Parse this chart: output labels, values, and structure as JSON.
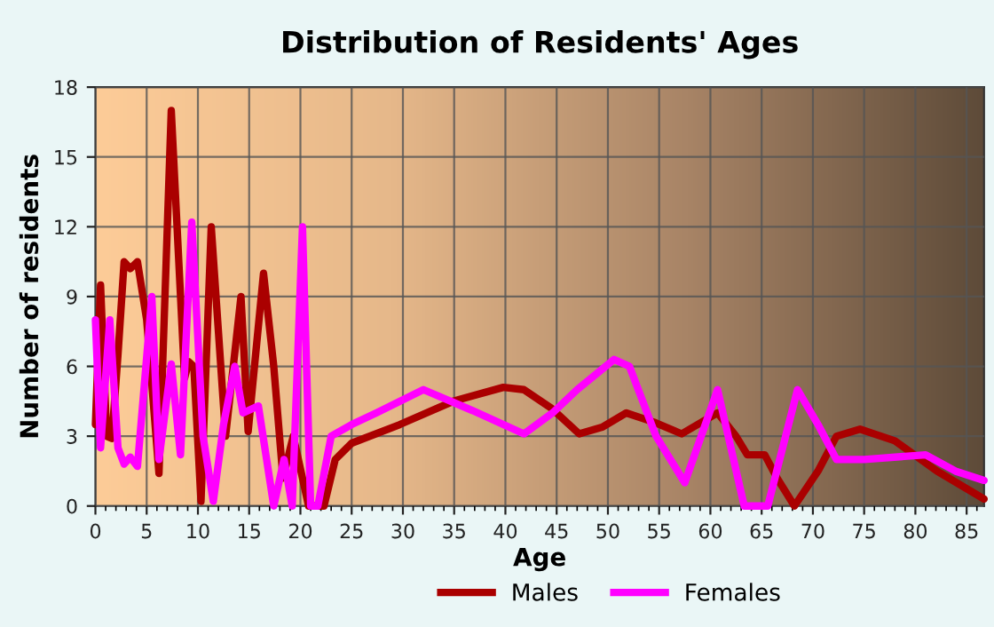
{
  "chart_data": {
    "type": "line",
    "title": "Distribution of Residents' Ages",
    "xlabel": "Age",
    "ylabel": "Number of residents",
    "xlim": [
      0,
      86.7
    ],
    "xticks": [
      0,
      5,
      10,
      15,
      20,
      25,
      30,
      35,
      40,
      45,
      50,
      55,
      60,
      65,
      70,
      75,
      80,
      85
    ],
    "ylim": [
      0,
      18
    ],
    "yticks": [
      0,
      3,
      6,
      9,
      12,
      15,
      18
    ],
    "grid": true,
    "legend": "bottom",
    "line_style": "solid",
    "marker": "none",
    "series": [
      {
        "name": "Males",
        "color": "#aa0000",
        "x": [
          0,
          0.5,
          1.1,
          1.6,
          2.2,
          2.8,
          3.4,
          4.1,
          5,
          6.2,
          7.4,
          8.7,
          9.1,
          9.6,
          10.3,
          11.3,
          12.7,
          14.2,
          14.9,
          16.4,
          17.4,
          18.3,
          19.3,
          20.8,
          22.3,
          23.4,
          25,
          29.7,
          34.9,
          39.8,
          41.8,
          44.5,
          47.2,
          49.5,
          51.8,
          54.5,
          57.2,
          60.7,
          62.5,
          63.6,
          65.3,
          66.5,
          68.2,
          70.5,
          72.3,
          74.6,
          78,
          82.1,
          86.7
        ],
        "values": [
          3.5,
          9.5,
          3,
          2.9,
          6.5,
          10.5,
          10.2,
          10.5,
          8,
          1.4,
          17,
          5.5,
          6.2,
          6,
          0.2,
          12,
          3,
          9,
          3.2,
          10,
          6,
          1.2,
          3,
          0,
          0,
          2,
          2.7,
          3.5,
          4.5,
          5.1,
          5,
          4.2,
          3.1,
          3.4,
          4,
          3.6,
          3.1,
          4,
          3,
          2.2,
          2.2,
          1.2,
          0,
          1.5,
          3,
          3.3,
          2.8,
          1.5,
          0.3
        ]
      },
      {
        "name": "Females",
        "color": "#ff00ff",
        "x": [
          0,
          0.5,
          1.4,
          2.2,
          2.8,
          3.4,
          4.1,
          5.5,
          6.2,
          7.4,
          8.3,
          9.4,
          10.5,
          11.5,
          12.5,
          13.6,
          14.4,
          15.9,
          17.4,
          18.4,
          19.2,
          20.2,
          21,
          21.7,
          23,
          25,
          27.4,
          32,
          36.8,
          41.8,
          44.6,
          47,
          50.6,
          52.1,
          54.7,
          57.5,
          60.7,
          63.3,
          65.6,
          68.5,
          70.5,
          72.3,
          75,
          81,
          83.9,
          86.7
        ],
        "values": [
          8,
          2.5,
          8,
          2.5,
          1.8,
          2.1,
          1.7,
          9,
          2,
          6.1,
          2.2,
          12.2,
          3,
          0.2,
          3.5,
          6,
          4,
          4.3,
          0,
          2,
          0,
          12,
          0,
          0,
          3,
          3.5,
          4,
          5,
          4.1,
          3.1,
          4,
          5,
          6.3,
          6,
          3,
          1,
          5,
          0,
          0,
          5,
          3.5,
          2,
          2,
          2.2,
          1.5,
          1.1
        ]
      }
    ]
  }
}
